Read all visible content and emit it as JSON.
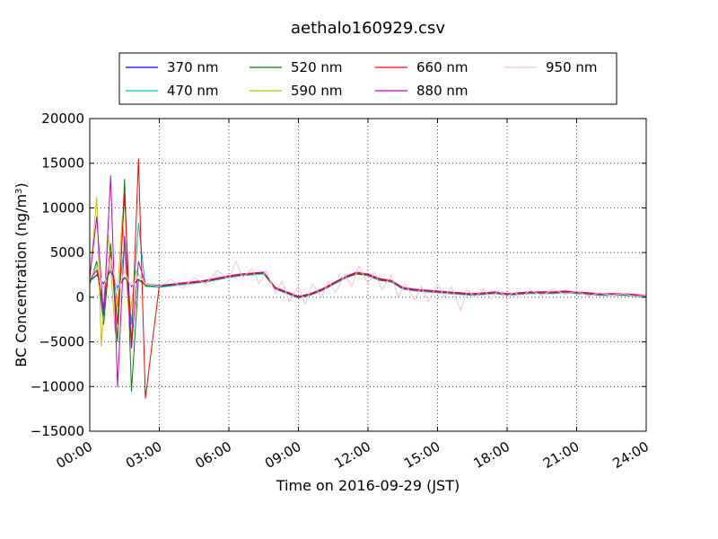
{
  "chart_data": {
    "type": "line",
    "title": "aethalo160929.csv",
    "xlabel": "Time on 2016-09-29 (JST)",
    "ylabel_main": "BC Concentration (ng/m",
    "ylabel_sup": "3",
    "ylabel_tail": ")",
    "x_unit": "hour",
    "xlim": [
      0,
      24
    ],
    "ylim": [
      -15000,
      20000
    ],
    "x_ticks": [
      0,
      3,
      6,
      9,
      12,
      15,
      18,
      21,
      24
    ],
    "x_tick_labels": [
      "00:00",
      "03:00",
      "06:00",
      "09:00",
      "12:00",
      "15:00",
      "18:00",
      "21:00",
      "24:00"
    ],
    "y_ticks": [
      -15000,
      -10000,
      -5000,
      0,
      5000,
      10000,
      15000,
      20000
    ],
    "y_tick_labels": [
      "−15000",
      "−10000",
      "−5000",
      "0",
      "5000",
      "10000",
      "15000",
      "20000"
    ],
    "grid": true,
    "legend_position": "top, above plot",
    "series": [
      {
        "name": "370 nm",
        "color": "#0000ff",
        "x": [
          0,
          0.3,
          0.6,
          0.9,
          1.2,
          1.5,
          1.8,
          2.1,
          2.4,
          3,
          4,
          5,
          6,
          6.5,
          7,
          7.5,
          8,
          8.5,
          9,
          9.5,
          10,
          10.5,
          11,
          11.5,
          12,
          12.5,
          13,
          13.5,
          14,
          14.5,
          15,
          15.5,
          16,
          16.5,
          17,
          17.5,
          18,
          18.5,
          19,
          19.5,
          20,
          20.5,
          21,
          21.5,
          22,
          22.5,
          23,
          23.5,
          24
        ],
        "y": [
          1800,
          2500,
          1500,
          3000,
          1000,
          2200,
          1200,
          2000,
          1500,
          1200,
          1500,
          1800,
          2300,
          2500,
          2600,
          2700,
          1000,
          500,
          0,
          300,
          800,
          1500,
          2200,
          2700,
          2500,
          2000,
          1800,
          1000,
          800,
          700,
          600,
          500,
          400,
          300,
          400,
          500,
          300,
          400,
          500,
          500,
          500,
          600,
          500,
          400,
          300,
          300,
          300,
          200,
          100
        ]
      },
      {
        "name": "470 nm",
        "color": "#00bfbf",
        "x": [
          0,
          0.3,
          0.6,
          0.9,
          1.2,
          1.5,
          1.8,
          2.1,
          2.4,
          3,
          4,
          5,
          6,
          6.5,
          7,
          7.5,
          8,
          8.5,
          9,
          9.5,
          10,
          10.5,
          11,
          11.5,
          12,
          12.5,
          13,
          13.5,
          14,
          14.5,
          15,
          15.5,
          16,
          16.5,
          17,
          17.5,
          18,
          18.5,
          19,
          19.5,
          20,
          20.5,
          21,
          21.5,
          22,
          22.5,
          23,
          23.5,
          24
        ],
        "y": [
          1500,
          3500,
          -2000,
          5000,
          -1000,
          6000,
          -3000,
          8300,
          1200,
          1100,
          1400,
          1700,
          2200,
          2400,
          2500,
          2600,
          900,
          400,
          -100,
          200,
          700,
          1400,
          2100,
          2600,
          2400,
          1900,
          1700,
          900,
          700,
          600,
          500,
          400,
          300,
          200,
          300,
          400,
          200,
          300,
          400,
          400,
          400,
          500,
          400,
          300,
          200,
          200,
          200,
          100,
          0
        ]
      },
      {
        "name": "520 nm",
        "color": "#008000",
        "x": [
          0,
          0.3,
          0.6,
          0.9,
          1.2,
          1.5,
          1.8,
          2.1,
          2.4,
          3,
          4,
          5,
          6,
          6.5,
          7,
          7.5,
          8,
          8.5,
          9,
          9.5,
          10,
          10.5,
          11,
          11.5,
          12,
          12.5,
          13,
          13.5,
          14,
          14.5,
          15,
          15.5,
          16,
          16.5,
          17,
          17.5,
          18,
          18.5,
          19,
          19.5,
          20,
          20.5,
          21,
          21.5,
          22,
          22.5,
          23,
          23.5,
          24
        ],
        "y": [
          1600,
          4000,
          -3000,
          6000,
          -5000,
          13200,
          -10500,
          2000,
          1300,
          1200,
          1500,
          1800,
          2300,
          2500,
          2600,
          2700,
          1000,
          500,
          0,
          300,
          800,
          1500,
          2200,
          2600,
          2500,
          1900,
          1800,
          1000,
          800,
          700,
          600,
          500,
          400,
          300,
          400,
          500,
          300,
          400,
          500,
          500,
          500,
          600,
          500,
          400,
          300,
          300,
          300,
          200,
          100
        ]
      },
      {
        "name": "590 nm",
        "color": "#bfbf00",
        "x": [
          0,
          0.3,
          0.5,
          0.8,
          1.1,
          1.4,
          1.7,
          2,
          2.4,
          3,
          4,
          5,
          6,
          6.5,
          7,
          7.5,
          8,
          8.5,
          9,
          9.5,
          10,
          10.5,
          11,
          11.5,
          12,
          12.5,
          13,
          13.5,
          14,
          14.5,
          15,
          15.5,
          16,
          16.5,
          17,
          17.5,
          18,
          18.5,
          19,
          19.5,
          20,
          20.5,
          21,
          21.5,
          22,
          22.5,
          23,
          23.5,
          24
        ],
        "y": [
          1700,
          11200,
          -5500,
          7000,
          -4000,
          9000,
          -2500,
          3000,
          1400,
          1300,
          1600,
          1900,
          2400,
          2600,
          2700,
          2800,
          1100,
          600,
          100,
          400,
          900,
          1600,
          2300,
          2700,
          2600,
          2000,
          1900,
          1100,
          900,
          800,
          700,
          600,
          500,
          400,
          500,
          600,
          400,
          500,
          600,
          600,
          600,
          700,
          600,
          500,
          400,
          400,
          400,
          300,
          200
        ]
      },
      {
        "name": "660 nm",
        "color": "#ff0000",
        "x": [
          0,
          0.3,
          0.6,
          0.9,
          1.2,
          1.5,
          1.8,
          2.1,
          2.4,
          3,
          4,
          5,
          6,
          6.5,
          7,
          7.5,
          8,
          8.5,
          9,
          9.5,
          10,
          10.5,
          11,
          11.5,
          12,
          12.5,
          13,
          13.5,
          14,
          14.5,
          15,
          15.5,
          16,
          16.5,
          17,
          17.5,
          18,
          18.5,
          19,
          19.5,
          20,
          20.5,
          21,
          21.5,
          22,
          22.5,
          23,
          23.5,
          24
        ],
        "y": [
          2000,
          3000,
          -1000,
          5000,
          -3000,
          11500,
          -5500,
          15500,
          -11300,
          1300,
          1500,
          1800,
          2300,
          2500,
          2600,
          2800,
          1000,
          500,
          0,
          300,
          800,
          1500,
          2200,
          2700,
          2500,
          2000,
          1800,
          1000,
          800,
          700,
          600,
          500,
          400,
          300,
          400,
          500,
          300,
          400,
          500,
          500,
          500,
          600,
          500,
          400,
          300,
          300,
          300,
          200,
          100
        ]
      },
      {
        "name": "880 nm",
        "color": "#bf00bf",
        "x": [
          0,
          0.3,
          0.6,
          0.9,
          1.2,
          1.5,
          1.8,
          2.1,
          2.4,
          3,
          4,
          5,
          6,
          6.5,
          7,
          7.5,
          8,
          8.5,
          9,
          9.5,
          10,
          10.5,
          11,
          11.5,
          12,
          12.5,
          13,
          13.5,
          14,
          14.5,
          15,
          15.5,
          16,
          16.5,
          17,
          17.5,
          18,
          18.5,
          19,
          19.5,
          20,
          20.5,
          21,
          21.5,
          22,
          22.5,
          23,
          23.5,
          24
        ],
        "y": [
          2200,
          9000,
          -2000,
          13600,
          -10000,
          6800,
          -5700,
          4000,
          1500,
          1300,
          1600,
          1900,
          2400,
          2600,
          2700,
          2800,
          1100,
          600,
          100,
          400,
          900,
          1600,
          2300,
          2800,
          2600,
          2100,
          1900,
          1100,
          900,
          800,
          700,
          600,
          500,
          400,
          500,
          600,
          400,
          500,
          600,
          600,
          600,
          700,
          600,
          500,
          400,
          400,
          400,
          300,
          200
        ]
      },
      {
        "name": "950 nm",
        "color": "#ffc0cb",
        "x": [
          0,
          0.3,
          0.6,
          0.9,
          1.2,
          1.5,
          1.8,
          2.1,
          2.4,
          3,
          3.5,
          4,
          4.5,
          5,
          5.5,
          6,
          6.3,
          6.6,
          7,
          7.3,
          7.6,
          8,
          8.3,
          8.6,
          9,
          9.3,
          9.6,
          10,
          10.3,
          10.6,
          11,
          11.3,
          11.6,
          12,
          12.3,
          12.6,
          13,
          13.3,
          13.6,
          14,
          14.3,
          14.6,
          15,
          15.3,
          15.6,
          16,
          16.3,
          16.6,
          17,
          17.3,
          17.6,
          18,
          18.3,
          18.6,
          19,
          19.5,
          20,
          20.5,
          21,
          21.5,
          22,
          22.5,
          23,
          23.5,
          24
        ],
        "y": [
          2000,
          3500,
          1000,
          4500,
          500,
          3000,
          1000,
          2500,
          1500,
          1200,
          2000,
          1000,
          2200,
          1500,
          3000,
          2000,
          4000,
          2200,
          3200,
          1500,
          3000,
          500,
          1800,
          -500,
          1200,
          -800,
          1500,
          0,
          1800,
          500,
          2500,
          1200,
          3500,
          1500,
          2800,
          800,
          2500,
          0,
          1500,
          -300,
          1200,
          -500,
          1500,
          0,
          1200,
          -1500,
          800,
          0,
          900,
          -200,
          700,
          100,
          600,
          0,
          800,
          200,
          900,
          300,
          700,
          100,
          500,
          200,
          400,
          100,
          200
        ]
      }
    ]
  }
}
